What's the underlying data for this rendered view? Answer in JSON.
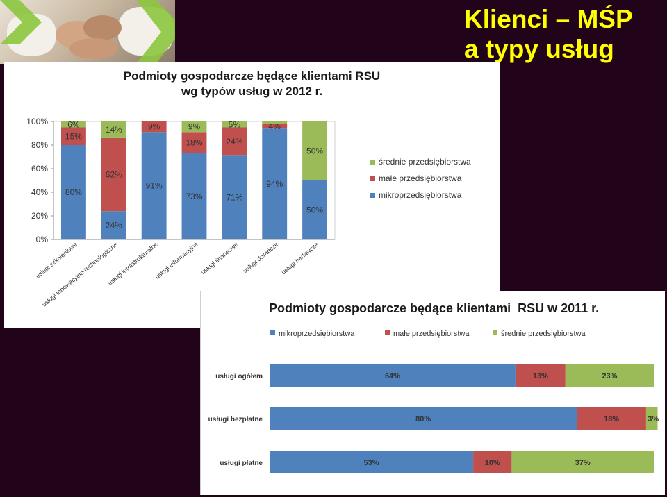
{
  "slide": {
    "title_line1": "Klienci – MŚP",
    "title_line2": "a typy usług"
  },
  "colors": {
    "background": "#22041a",
    "title": "#ffff00",
    "mikro": "#4f81bd",
    "male": "#c0504d",
    "srednie": "#9bbb59"
  },
  "chart_data": [
    {
      "type": "bar",
      "stacked": true,
      "orientation": "vertical",
      "title_line1": "Podmioty gospodarcze będące klientami RSU",
      "title_line2": "wg typów usług w 2012 r.",
      "categories": [
        "usługi szkoleniowe",
        "usługi innowacyjno-technologiczne",
        "usługi infrastrukturalne",
        "usługi informacyjne",
        "usługi finansowe",
        "usługi doradcze",
        "usługi badawcze"
      ],
      "series": [
        {
          "name": "mikroprzedsiębiorstwa",
          "values": [
            80,
            24,
            91,
            73,
            71,
            94,
            50
          ],
          "labels": [
            "80%",
            "24%",
            "91%",
            "73%",
            "71%",
            "94%",
            "50%"
          ]
        },
        {
          "name": "małe przedsiębiorstwa",
          "values": [
            15,
            62,
            9,
            18,
            24,
            4,
            0
          ],
          "labels": [
            "15%",
            "62%",
            "9%",
            "18%",
            "24%",
            "4%",
            ""
          ]
        },
        {
          "name": "średnie przedsiębiorstwa",
          "values": [
            6,
            14,
            0,
            9,
            5,
            2,
            50
          ],
          "labels": [
            "6%",
            "14%",
            "",
            "9%",
            "5%",
            "",
            "50%"
          ]
        }
      ],
      "yticks": [
        "0%",
        "20%",
        "40%",
        "60%",
        "80%",
        "100%"
      ],
      "ylim": [
        0,
        100
      ],
      "legend_position": "right",
      "legend_order": [
        "średnie przedsiębiorstwa",
        "małe przedsiębiorstwa",
        "mikroprzedsiębiorstwa"
      ]
    },
    {
      "type": "bar",
      "stacked": true,
      "orientation": "horizontal",
      "title": "Podmioty gospodarcze będące klientami  RSU w 2011 r.",
      "categories": [
        "usługi ogółem",
        "usługi bezpłatne",
        "usługi płatne"
      ],
      "series": [
        {
          "name": "mikroprzedsiębiorstwa",
          "values": [
            64,
            80,
            53
          ],
          "labels": [
            "64%",
            "80%",
            "53%"
          ]
        },
        {
          "name": "małe przedsiębiorstwa",
          "values": [
            13,
            18,
            10
          ],
          "labels": [
            "13%",
            "18%",
            "10%"
          ]
        },
        {
          "name": "średnie przedsiębiorstwa",
          "values": [
            23,
            3,
            37
          ],
          "labels": [
            "23%",
            "3%",
            "37%"
          ]
        }
      ],
      "xlim": [
        0,
        100
      ],
      "legend_position": "top"
    }
  ]
}
